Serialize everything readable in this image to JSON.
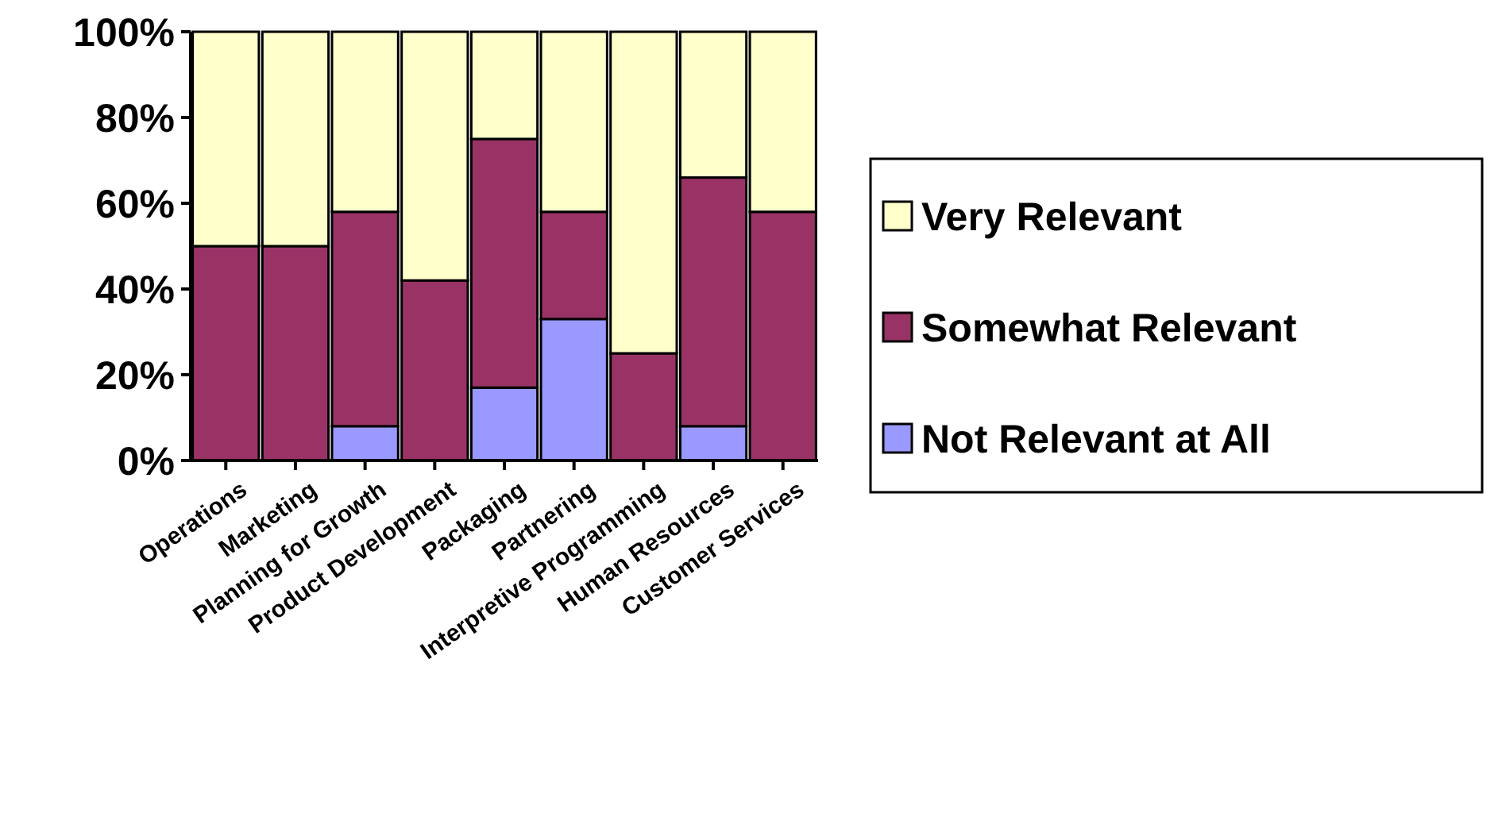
{
  "chart_data": {
    "type": "bar",
    "stacked": true,
    "categories": [
      "Operations",
      "Marketing",
      "Planning for Growth",
      "Product Development",
      "Packaging",
      "Partnering",
      "Interpretive Programming",
      "Human Resources",
      "Customer Services"
    ],
    "series": [
      {
        "name": "Not Relevant at All",
        "color": "#9999ff",
        "values": [
          0,
          0,
          8,
          0,
          17,
          33,
          0,
          8,
          0
        ]
      },
      {
        "name": "Somewhat Relevant",
        "color": "#993366",
        "values": [
          50,
          50,
          50,
          42,
          58,
          25,
          25,
          58,
          58
        ]
      },
      {
        "name": "Very Relevant",
        "color": "#ffffcc",
        "values": [
          50,
          50,
          42,
          58,
          25,
          42,
          75,
          34,
          42
        ]
      }
    ],
    "ylim": [
      0,
      100
    ],
    "yticks": [
      {
        "value": 0,
        "label": "0%"
      },
      {
        "value": 20,
        "label": "20%"
      },
      {
        "value": 40,
        "label": "40%"
      },
      {
        "value": 60,
        "label": "60%"
      },
      {
        "value": 80,
        "label": "80%"
      },
      {
        "value": 100,
        "label": "100%"
      }
    ],
    "grid": false,
    "legend": "right"
  }
}
